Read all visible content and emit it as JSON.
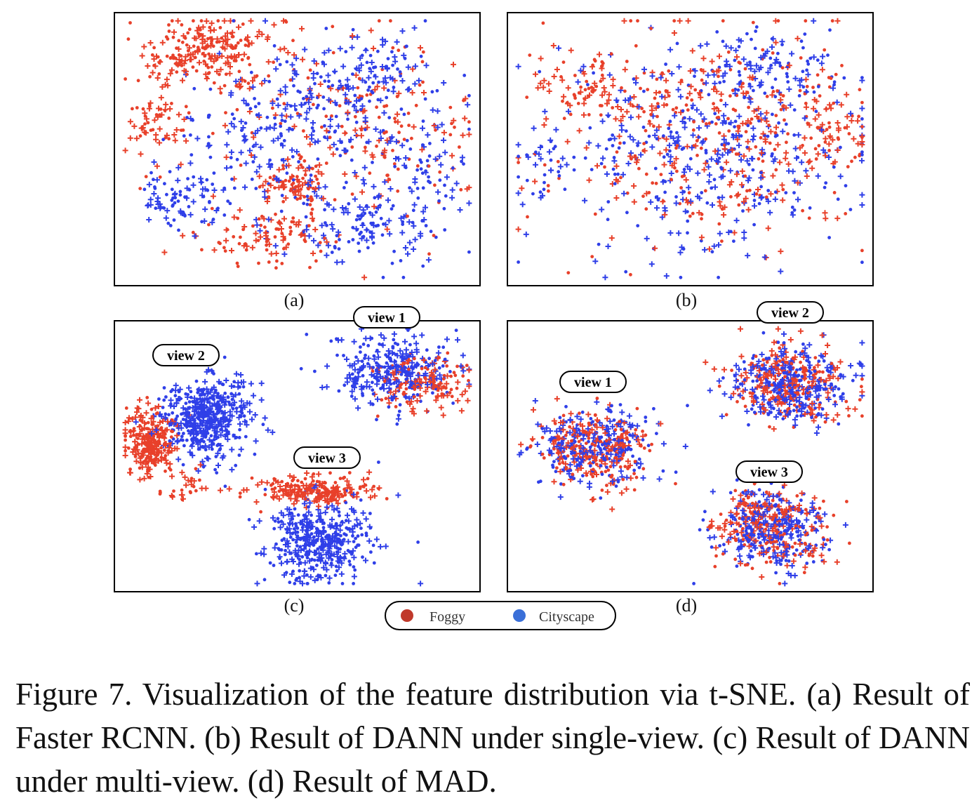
{
  "colors": {
    "foggy": "#e8402a",
    "cityscape": "#2f3fe8",
    "frame": "#000000"
  },
  "legend": {
    "items": [
      {
        "label": "Foggy",
        "color": "#c0392b"
      },
      {
        "label": "Cityscape",
        "color": "#3a6fd8"
      }
    ]
  },
  "chart_data": [
    {
      "type": "scatter",
      "panel_label": "(a)",
      "seed": 11,
      "series": [
        {
          "name": "Foggy",
          "clusters": [
            {
              "cx": 0.26,
              "cy": 0.86,
              "sx": 0.09,
              "sy": 0.06,
              "n": 230
            },
            {
              "cx": 0.12,
              "cy": 0.58,
              "sx": 0.05,
              "sy": 0.06,
              "n": 60
            },
            {
              "cx": 0.5,
              "cy": 0.38,
              "sx": 0.05,
              "sy": 0.04,
              "n": 90
            },
            {
              "cx": 0.42,
              "cy": 0.18,
              "sx": 0.1,
              "sy": 0.05,
              "n": 100
            },
            {
              "cx": 0.75,
              "cy": 0.55,
              "sx": 0.12,
              "sy": 0.12,
              "n": 90
            },
            {
              "cx": 0.55,
              "cy": 0.6,
              "sx": 0.2,
              "sy": 0.2,
              "n": 130
            }
          ]
        },
        {
          "name": "Cityscape",
          "clusters": [
            {
              "cx": 0.55,
              "cy": 0.62,
              "sx": 0.14,
              "sy": 0.15,
              "n": 230
            },
            {
              "cx": 0.72,
              "cy": 0.78,
              "sx": 0.07,
              "sy": 0.06,
              "n": 80
            },
            {
              "cx": 0.16,
              "cy": 0.3,
              "sx": 0.05,
              "sy": 0.05,
              "n": 70
            },
            {
              "cx": 0.68,
              "cy": 0.22,
              "sx": 0.12,
              "sy": 0.07,
              "n": 140
            },
            {
              "cx": 0.86,
              "cy": 0.45,
              "sx": 0.06,
              "sy": 0.08,
              "n": 60
            },
            {
              "cx": 0.34,
              "cy": 0.42,
              "sx": 0.1,
              "sy": 0.12,
              "n": 80
            }
          ]
        }
      ]
    },
    {
      "type": "scatter",
      "panel_label": "(b)",
      "seed": 23,
      "series": [
        {
          "name": "Foggy",
          "clusters": [
            {
              "cx": 0.55,
              "cy": 0.55,
              "sx": 0.2,
              "sy": 0.2,
              "n": 420
            },
            {
              "cx": 0.2,
              "cy": 0.72,
              "sx": 0.07,
              "sy": 0.06,
              "n": 60
            },
            {
              "cx": 0.9,
              "cy": 0.6,
              "sx": 0.04,
              "sy": 0.07,
              "n": 50
            }
          ]
        },
        {
          "name": "Cityscape",
          "clusters": [
            {
              "cx": 0.55,
              "cy": 0.5,
              "sx": 0.2,
              "sy": 0.21,
              "n": 420
            },
            {
              "cx": 0.7,
              "cy": 0.82,
              "sx": 0.08,
              "sy": 0.06,
              "n": 70
            },
            {
              "cx": 0.1,
              "cy": 0.42,
              "sx": 0.04,
              "sy": 0.06,
              "n": 40
            }
          ]
        }
      ]
    },
    {
      "type": "scatter",
      "panel_label": "(c)",
      "seed": 37,
      "series": [
        {
          "name": "Foggy",
          "clusters": [
            {
              "cx": 0.1,
              "cy": 0.55,
              "sx": 0.035,
              "sy": 0.06,
              "n": 260
            },
            {
              "cx": 0.19,
              "cy": 0.4,
              "sx": 0.03,
              "sy": 0.03,
              "n": 30
            },
            {
              "cx": 0.85,
              "cy": 0.77,
              "sx": 0.07,
              "sy": 0.05,
              "n": 150
            },
            {
              "cx": 0.55,
              "cy": 0.37,
              "sx": 0.08,
              "sy": 0.025,
              "n": 230
            }
          ]
        },
        {
          "name": "Cityscape",
          "clusters": [
            {
              "cx": 0.25,
              "cy": 0.64,
              "sx": 0.06,
              "sy": 0.075,
              "n": 500
            },
            {
              "cx": 0.76,
              "cy": 0.82,
              "sx": 0.08,
              "sy": 0.07,
              "n": 300
            },
            {
              "cx": 0.56,
              "cy": 0.19,
              "sx": 0.07,
              "sy": 0.075,
              "n": 420
            }
          ]
        }
      ]
    },
    {
      "type": "scatter",
      "panel_label": "(d)",
      "seed": 53,
      "series": [
        {
          "name": "Foggy",
          "clusters": [
            {
              "cx": 0.24,
              "cy": 0.53,
              "sx": 0.08,
              "sy": 0.075,
              "n": 260
            },
            {
              "cx": 0.77,
              "cy": 0.77,
              "sx": 0.08,
              "sy": 0.07,
              "n": 260
            },
            {
              "cx": 0.72,
              "cy": 0.24,
              "sx": 0.075,
              "sy": 0.075,
              "n": 260
            }
          ]
        },
        {
          "name": "Cityscape",
          "clusters": [
            {
              "cx": 0.24,
              "cy": 0.53,
              "sx": 0.08,
              "sy": 0.075,
              "n": 260
            },
            {
              "cx": 0.77,
              "cy": 0.77,
              "sx": 0.08,
              "sy": 0.07,
              "n": 320
            },
            {
              "cx": 0.72,
              "cy": 0.24,
              "sx": 0.075,
              "sy": 0.075,
              "n": 300
            }
          ]
        }
      ]
    }
  ],
  "view_tags": {
    "c": [
      "view 1",
      "view 2",
      "view 3"
    ],
    "d": [
      "view 1",
      "view 2",
      "view 3"
    ]
  },
  "caption": {
    "text": "Figure 7.  Visualization of the feature distribution via t-SNE. (a) Result of Faster RCNN. (b) Result of DANN under single-view. (c) Result of DANN under multi-view. (d) Result of MAD."
  }
}
